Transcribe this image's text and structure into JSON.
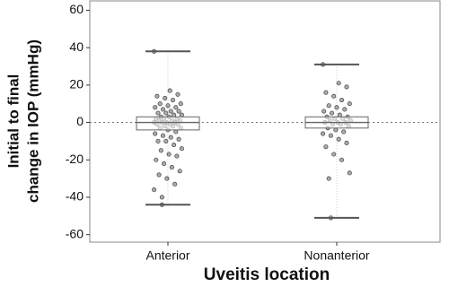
{
  "chart_data": {
    "type": "box",
    "xlabel": "Uveitis location",
    "ylabel": [
      "Initial to final",
      "change in IOP (mmHg)"
    ],
    "categories": [
      "Anterior",
      "Nonanterior"
    ],
    "ylim": [
      -64,
      65
    ],
    "yticks": [
      -60,
      -40,
      -20,
      0,
      20,
      40,
      60
    ],
    "hline": 0,
    "box_color": "#666666",
    "cap_color": "#555555",
    "point_color": "#444444",
    "boxes": [
      {
        "min": -44,
        "q1": -4,
        "median": 0,
        "q3": 3,
        "max": 38,
        "points": [
          38,
          -44,
          17,
          15,
          14,
          13,
          12,
          10,
          10,
          9,
          8,
          8,
          7,
          6,
          6,
          5,
          5,
          4,
          4,
          3,
          3,
          2,
          2,
          2,
          1,
          1,
          1,
          0,
          0,
          0,
          0,
          -1,
          -1,
          -1,
          -2,
          -2,
          -3,
          -3,
          -4,
          -5,
          -6,
          -7,
          -8,
          -9,
          -10,
          -10,
          -12,
          -14,
          -15,
          -17,
          -18,
          -20,
          -22,
          -24,
          -26,
          -28,
          -30,
          -33,
          -36,
          -40
        ]
      },
      {
        "min": -51,
        "q1": -3,
        "median": 0,
        "q3": 3,
        "max": 31,
        "points": [
          31,
          -51,
          21,
          19,
          16,
          14,
          12,
          10,
          9,
          8,
          7,
          6,
          5,
          4,
          3,
          3,
          2,
          2,
          1,
          1,
          0,
          0,
          0,
          -1,
          -1,
          -2,
          -3,
          -4,
          -5,
          -6,
          -7,
          -9,
          -11,
          -13,
          -17,
          -20,
          -27,
          -30
        ]
      }
    ]
  }
}
